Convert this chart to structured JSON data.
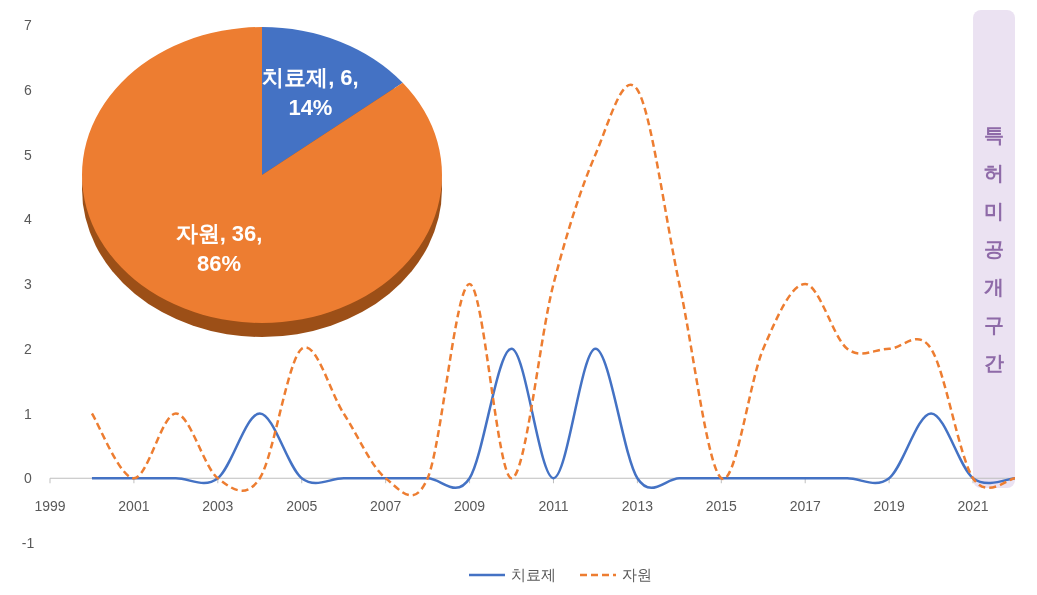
{
  "chart_data": [
    {
      "type": "line",
      "x": [
        2000,
        2001,
        2002,
        2003,
        2004,
        2005,
        2006,
        2007,
        2008,
        2009,
        2010,
        2011,
        2012,
        2013,
        2014,
        2015,
        2016,
        2017,
        2018,
        2019,
        2020,
        2021,
        2022
      ],
      "series": [
        {
          "name": "치료제",
          "color": "#4472c4",
          "line_style": "solid",
          "values": [
            0,
            0,
            0,
            0,
            1,
            0,
            0,
            0,
            0,
            0,
            2,
            0,
            2,
            0,
            0,
            0,
            0,
            0,
            0,
            0,
            1,
            0,
            0
          ]
        },
        {
          "name": "자원",
          "color": "#ed7d31",
          "line_style": "dashed",
          "values": [
            1,
            0,
            1,
            0,
            0,
            2,
            1,
            0,
            0,
            3,
            0,
            3,
            5,
            6,
            3,
            0,
            2,
            3,
            2,
            2,
            2,
            0,
            0
          ]
        }
      ],
      "xlim": [
        1999,
        2022
      ],
      "xticks": [
        1999,
        2001,
        2003,
        2005,
        2007,
        2009,
        2011,
        2013,
        2015,
        2017,
        2019,
        2021
      ],
      "ylim": [
        -1,
        7
      ],
      "yticks": [
        -1,
        0,
        1,
        2,
        3,
        4,
        5,
        6,
        7
      ],
      "bands": [
        {
          "axis": "x",
          "from": 2021,
          "to": 2022,
          "label": "특허미공개구간",
          "color": "#ebe2f2"
        }
      ],
      "grid": false,
      "legend": "bottom",
      "marker": "none"
    },
    {
      "type": "pie",
      "categories": [
        "치료제",
        "자원"
      ],
      "values": [
        6,
        36
      ],
      "colors": [
        "#4472c4",
        "#ed7d31"
      ],
      "value_labels": [
        ", 6, 14%",
        ", 36, 86%"
      ]
    }
  ]
}
